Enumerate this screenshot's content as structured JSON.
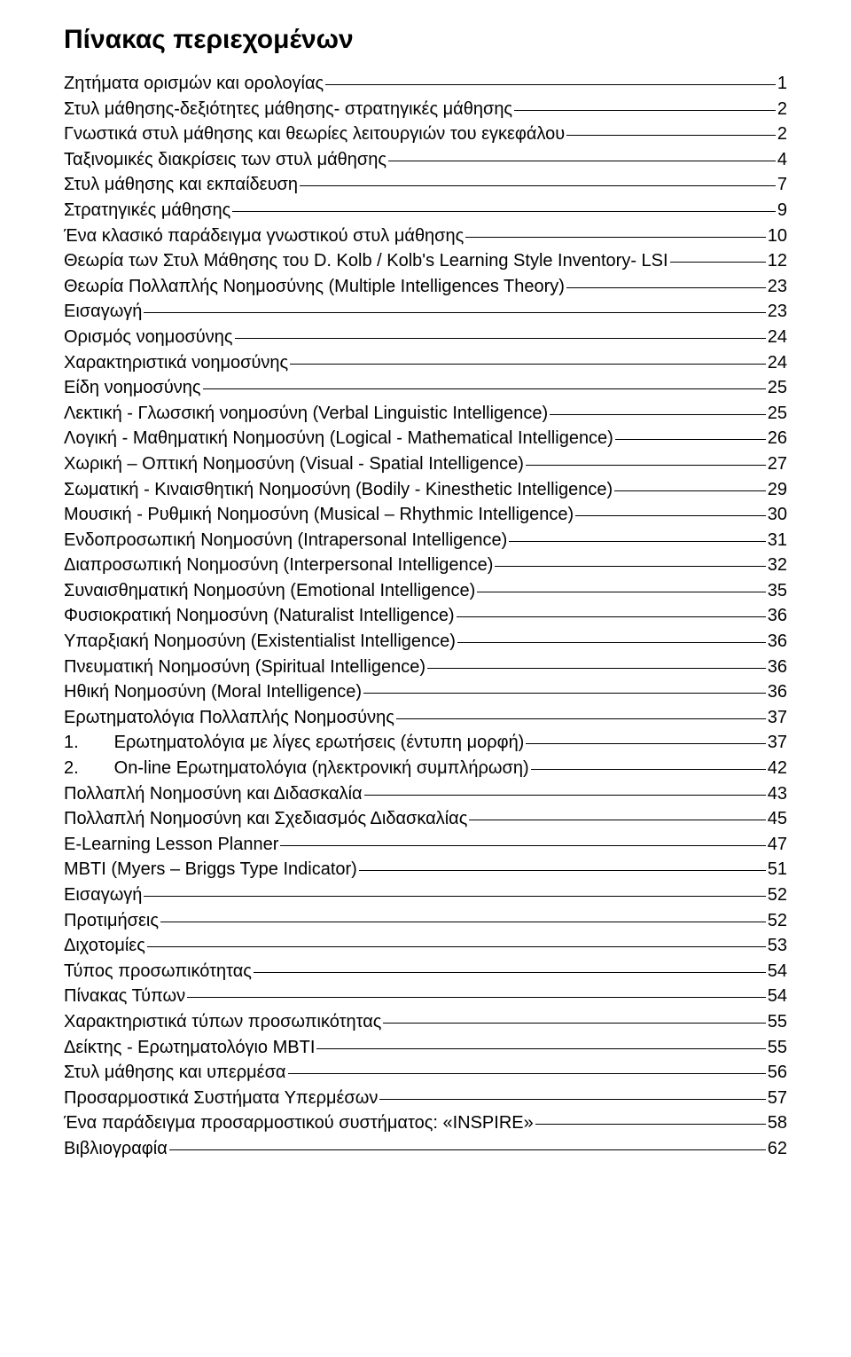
{
  "title": "Πίνακας περιεχομένων",
  "toc": [
    {
      "label": "Ζητήματα ορισμών και ορολογίας",
      "page": "1"
    },
    {
      "label": "Στυλ μάθησης-δεξιότητες μάθησης- στρατηγικές μάθησης",
      "page": "2"
    },
    {
      "label": "Γνωστικά στυλ μάθησης και θεωρίες λειτουργιών του εγκεφάλου",
      "page": "2"
    },
    {
      "label": "Ταξινομικές διακρίσεις των στυλ μάθησης",
      "page": "4"
    },
    {
      "label": "Στυλ μάθησης και εκπαίδευση",
      "page": "7"
    },
    {
      "label": "Στρατηγικές μάθησης",
      "page": "9"
    },
    {
      "label": "Ένα κλασικό παράδειγμα γνωστικού στυλ μάθησης",
      "page": "10"
    },
    {
      "label": "Θεωρία των Στυλ Μάθησης του D. Kolb / Kolb's Learning Style Inventory- LSI",
      "page": "12"
    },
    {
      "label": "Θεωρία Πολλαπλής Νοημοσύνης (Multiple Intelligences Theory)",
      "page": "23"
    },
    {
      "label": "Εισαγωγή",
      "page": "23"
    },
    {
      "label": "Ορισμός νοημοσύνης",
      "page": "24"
    },
    {
      "label": "Χαρακτηριστικά νοημοσύνης",
      "page": "24"
    },
    {
      "label": "Είδη νοημοσύνης",
      "page": "25"
    },
    {
      "label": "Λεκτική - Γλωσσική νοημοσύνη (Verbal Linguistic Intelligence)",
      "page": "25"
    },
    {
      "label": "Λογική - Μαθηματική Νοημοσύνη  (Logical - Mathematical Intelligence)",
      "page": "26"
    },
    {
      "label": "Χωρική – Οπτική Νοημοσύνη  (Visual - Spatial Intelligence)",
      "page": "27"
    },
    {
      "label": "Σωματική - Κιναισθητική Νοημοσύνη  (Bodily - Kinesthetic Intelligence)",
      "page": "29"
    },
    {
      "label": "Μουσική - Ρυθμική Νοημοσύνη  (Musical – Rhythmic Intelligence)",
      "page": "30"
    },
    {
      "label": "Ενδοπροσωπική Νοημοσύνη (Intrapersonal Intelligence)",
      "page": "31"
    },
    {
      "label": "Διαπροσωπική Νοημοσύνη (Interpersonal Intelligence)",
      "page": "32"
    },
    {
      "label": "Συναισθηματική Νοημοσύνη  (Emotional Intelligence)",
      "page": "35"
    },
    {
      "label": "Φυσιοκρατική Νοημοσύνη  (Naturalist Intelligence)",
      "page": "36"
    },
    {
      "label": "Υπαρξιακή Νοημοσύνη  (Existentialist Intelligence)",
      "page": "36"
    },
    {
      "label": "Πνευματική Νοημοσύνη  (Spiritual Intelligence)",
      "page": "36"
    },
    {
      "label": "Ηθική Νοημοσύνη  (Moral Intelligence)",
      "page": "36"
    },
    {
      "label": "Ερωτηματολόγια Πολλαπλής Νοημοσύνης",
      "page": "37"
    },
    {
      "label": "1.  Ερωτηματολόγια με λίγες ερωτήσεις (έντυπη μορφή)",
      "page": "37"
    },
    {
      "label": "2.  On-line Ερωτηματολόγια (ηλεκτρονική συμπλήρωση)",
      "page": "42"
    },
    {
      "label": "Πολλαπλή Νοημοσύνη και Διδασκαλία",
      "page": "43"
    },
    {
      "label": "Πολλαπλή Νοημοσύνη και Σχεδιασμός Διδασκαλίας",
      "page": "45"
    },
    {
      "label": "E-Learning Lesson Planner",
      "page": "47"
    },
    {
      "label": "MBTI (Myers – Briggs Type Indicator)",
      "page": "51"
    },
    {
      "label": "Εισαγωγή",
      "page": "52"
    },
    {
      "label": "Προτιμήσεις",
      "page": "52"
    },
    {
      "label": "Διχοτομίες",
      "page": "53"
    },
    {
      "label": "Τύπος προσωπικότητας",
      "page": "54"
    },
    {
      "label": "Πίνακας Τύπων",
      "page": "54"
    },
    {
      "label": "Χαρακτηριστικά τύπων προσωπικότητας",
      "page": "55"
    },
    {
      "label": "Δείκτης - Ερωτηματολόγιο MBTI",
      "page": "55"
    },
    {
      "label": "Στυλ μάθησης και υπερμέσα",
      "page": "56"
    },
    {
      "label": "Προσαρμοστικά Συστήματα Υπερμέσων",
      "page": "57"
    },
    {
      "label": "Ένα παράδειγμα προσαρμοστικού συστήματος: «INSPIRE»",
      "page": "58"
    },
    {
      "label": "Βιβλιογραφία",
      "page": "62"
    }
  ]
}
